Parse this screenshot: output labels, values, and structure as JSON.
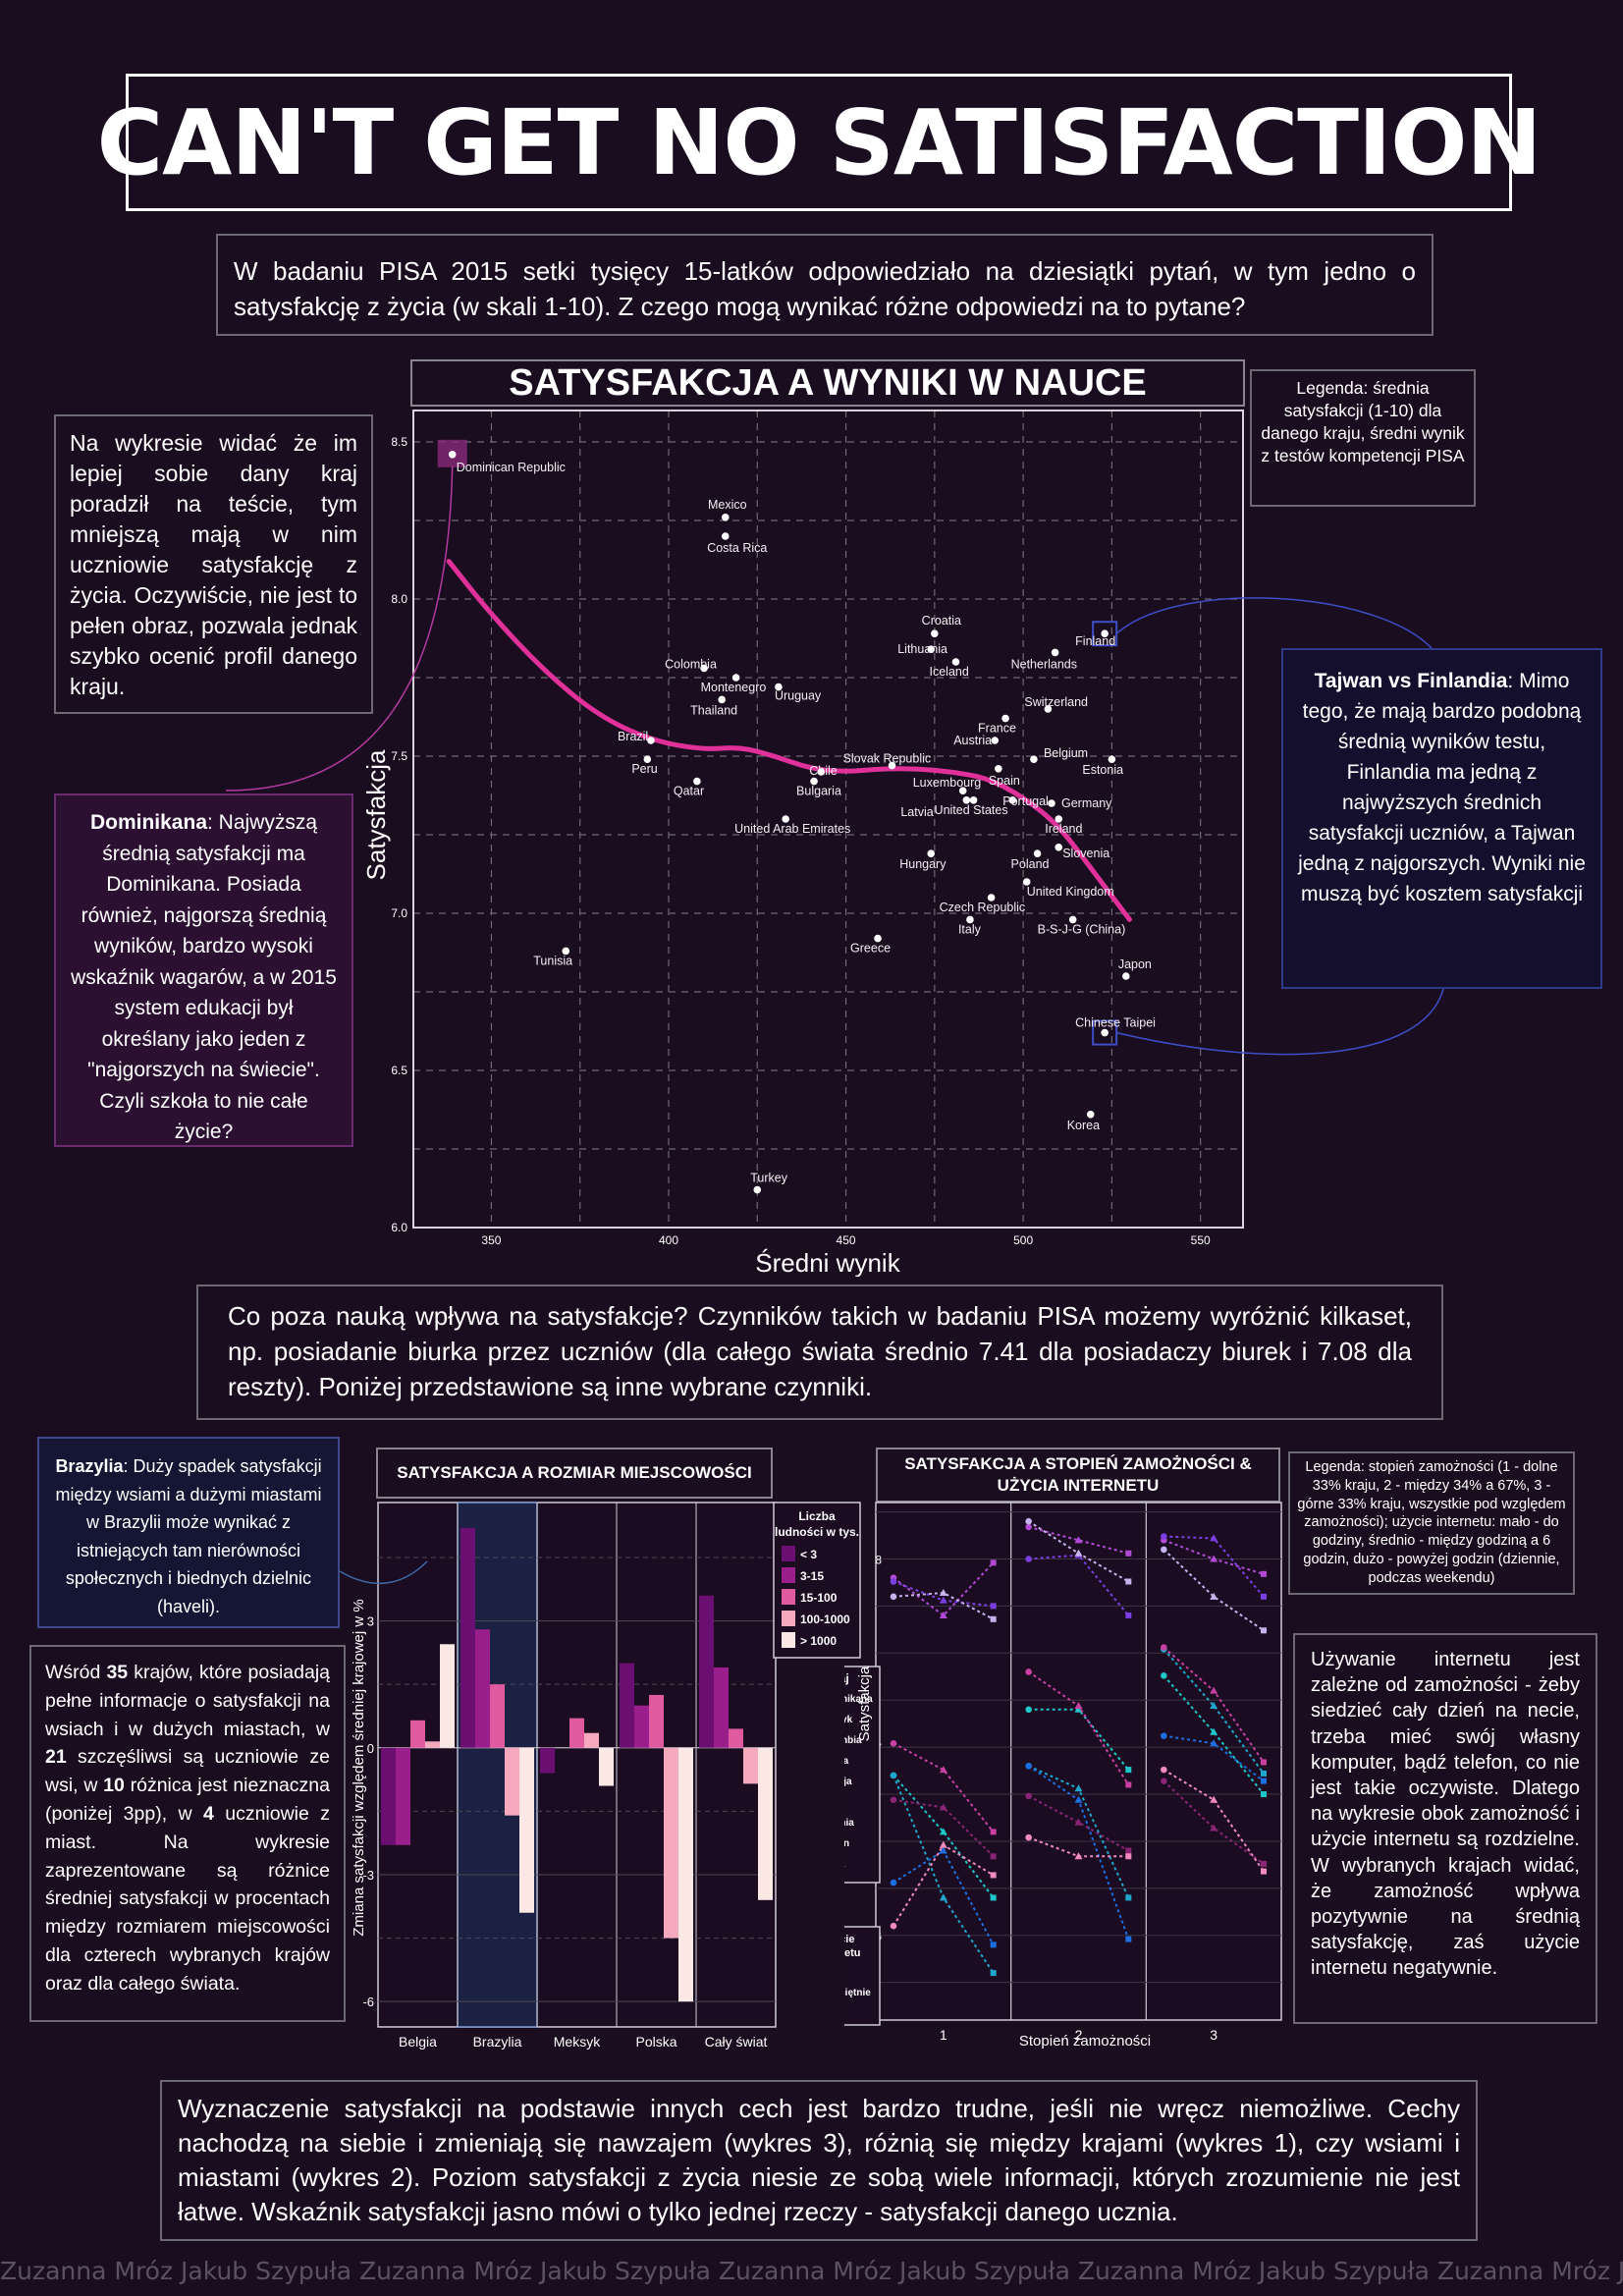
{
  "title": "CAN'T GET NO SATISFACTION",
  "intro": "W badaniu PISA 2015 setki tysięcy 15-latków odpowiedziało na dziesiątki pytań, w tym jedno o satysfakcję z życia (w skali 1-10). Z czego mogą wynikać różne odpowiedzi na to pytane?",
  "left_note": "Na wykresie widać że im lepiej sobie dany kraj poradził na teście, tym mniejszą mają w nim uczniowie satysfakcję z życia. Oczywiście, nie jest to pełen obraz, pozwala jednak szybko ocenić profil danego kraju.",
  "dominikana": {
    "bold": "Dominikana",
    "text": ": Najwyższą średnią satysfakcji ma Dominikana. Posiada również, najgorszą średnią wyników, bardzo wysoki wskaźnik wagarów, a w 2015 system edukacji był określany jako jeden z \"najgorszych na świecie\". Czyli szkoła to nie całe życie?"
  },
  "legend1": "Legenda: średnia satysfakcji (1-10) dla danego kraju, średni wynik z testów kompetencji PISA",
  "taiwan": {
    "bold": "Tajwan vs Finlandia",
    "text": ": Mimo tego, że mają bardzo podobną średnią wyników testu, Finlandia ma jedną z najwyższych średnich satysfakcji uczniów, a Tajwan jedną z najgorszych. Wyniki nie muszą być kosztem satysfakcji"
  },
  "mid_text": "Co poza nauką wpływa na satysfakcje? Czynników takich w badaniu PISA możemy wyróżnić kilkaset, np. posiadanie biurka przez uczniów (dla całego świata średnio 7.41 dla posiadaczy biurek i 7.08 dla reszty). Poniżej przedstawione są inne wybrane czynniki.",
  "brazylia": {
    "bold": "Brazylia",
    "text": ": Duży spadek satysfakcji między wsiami a dużymi miastami w Brazylii może wynikać z istniejących tam nierówności społecznych i biednych dzielnic (haveli)."
  },
  "countries_note": {
    "p1": "Wśród ",
    "b1": "35",
    "p2": " krajów, które posiadają pełne informacje o satysfakcji na wsiach i w dużych miastach, w ",
    "b2": "21",
    "p3": " szczęśliwsi są uczniowie ze wsi, w ",
    "b3": "10",
    "p4": " różnica jest nieznaczna (poniżej 3pp), w ",
    "b4": "4",
    "p5": " uczniowie z miast. Na wykresie zaprezentowane są różnice średniej satysfakcji w procentach między rozmiarem miejscowości dla czterech wybranych krajów oraz dla całego świata."
  },
  "legend3": "Legenda: stopień zamożności (1 - dolne 33% kraju, 2 - między 34% a 67%, 3 - górne 33% kraju, wszystkie pod względem zamożności); użycie internetu: mało - do godziny, średnio - między godziną a 6 godzin, dużo - powyżej godzin (dziennie, podczas weekendu)",
  "internet_note": "Używanie internetu jest zależne od zamożności - żeby siedzieć cały dzień na necie, trzeba mieć swój własny komputer, bądź telefon, co nie jest takie oczywiste. Dlatego na wykresie obok zamożność i użycie internetu są rozdzielne. W wybranych krajach widać, że zamożność wpływa pozytywnie na średnią satysfakcję, zaś użycie internetu negatywnie.",
  "bottom_text": "Wyznaczenie satysfakcji na podstawie innych cech jest bardzo trudne, jeśli nie wręcz niemożliwe. Cechy nachodzą na siebie i zmieniają się nawzajem (wykres 3), różnią się między krajami (wykres 1), czy wsiami i miastami (wykres 2). Poziom satysfakcji z życia niesie ze sobą wiele informacji, których zrozumienie nie jest łatwe. Wskaźnik satysfakcji jasno mówi o tylko jednej rzeczy - satysfakcji danego ucznia.",
  "watermark": "Zuzanna Mróz Jakub Szypuła Zuzanna Mróz Jakub Szypuła Zuzanna Mróz Jakub Szypuła Zuzanna Mróz Jakub Szypuła Zuzanna Mróz Jakub Szypuła",
  "colors": {
    "background": "#1a0d1f",
    "trend": "#e0309a",
    "dominican_highlight": "#8a2a7a",
    "fin_tw_highlight": "#2f3ea8",
    "wealth_lines": [
      "#9b44d8",
      "#ffffff"
    ]
  },
  "chart_data": [
    {
      "type": "scatter",
      "title": "SATYSFAKCJA A WYNIKI W NAUCE",
      "xlabel": "Średni wynik",
      "ylabel": "Satysfakcja",
      "xlim": [
        328,
        562
      ],
      "ylim": [
        6.0,
        8.6
      ],
      "xticks": [
        350,
        400,
        450,
        500,
        550
      ],
      "yticks": [
        6.0,
        6.5,
        7.0,
        7.5,
        8.0,
        8.5
      ],
      "grid": true,
      "points": [
        {
          "label": "Dominican Republic",
          "x": 339,
          "y": 8.46
        },
        {
          "label": "Mexico",
          "x": 416,
          "y": 8.26
        },
        {
          "label": "Costa Rica",
          "x": 416,
          "y": 8.2
        },
        {
          "label": "Croatia",
          "x": 475,
          "y": 7.89
        },
        {
          "label": "Lithuania",
          "x": 474,
          "y": 7.84
        },
        {
          "label": "Finland",
          "x": 523,
          "y": 7.89
        },
        {
          "label": "Netherlands",
          "x": 509,
          "y": 7.83
        },
        {
          "label": "Iceland",
          "x": 481,
          "y": 7.8
        },
        {
          "label": "Colombia",
          "x": 410,
          "y": 7.78
        },
        {
          "label": "Montenegro",
          "x": 419,
          "y": 7.75
        },
        {
          "label": "Uruguay",
          "x": 431,
          "y": 7.72
        },
        {
          "label": "Thailand",
          "x": 415,
          "y": 7.68
        },
        {
          "label": "Switzerland",
          "x": 507,
          "y": 7.65
        },
        {
          "label": "France",
          "x": 495,
          "y": 7.62
        },
        {
          "label": "Austria",
          "x": 492,
          "y": 7.55
        },
        {
          "label": "Belgium",
          "x": 503,
          "y": 7.49
        },
        {
          "label": "Brazil",
          "x": 395,
          "y": 7.55
        },
        {
          "label": "Peru",
          "x": 394,
          "y": 7.49
        },
        {
          "label": "Slovak Republic",
          "x": 463,
          "y": 7.47
        },
        {
          "label": "Estonia",
          "x": 525,
          "y": 7.49
        },
        {
          "label": "Chile",
          "x": 443,
          "y": 7.45
        },
        {
          "label": "Spain",
          "x": 493,
          "y": 7.46
        },
        {
          "label": "Luxembourg",
          "x": 483,
          "y": 7.39
        },
        {
          "label": "Portugal",
          "x": 497,
          "y": 7.36
        },
        {
          "label": "Qatar",
          "x": 408,
          "y": 7.42
        },
        {
          "label": "Bulgaria",
          "x": 441,
          "y": 7.42
        },
        {
          "label": "Germany",
          "x": 508,
          "y": 7.35
        },
        {
          "label": "Latvia",
          "x": 484,
          "y": 7.36
        },
        {
          "label": "United States",
          "x": 486,
          "y": 7.36
        },
        {
          "label": "Ireland",
          "x": 510,
          "y": 7.3
        },
        {
          "label": "United Arab Emirates",
          "x": 433,
          "y": 7.3
        },
        {
          "label": "Slovenia",
          "x": 510,
          "y": 7.21
        },
        {
          "label": "Hungary",
          "x": 474,
          "y": 7.19
        },
        {
          "label": "Poland",
          "x": 504,
          "y": 7.19
        },
        {
          "label": "United Kingdom",
          "x": 501,
          "y": 7.1
        },
        {
          "label": "Czech Republic",
          "x": 491,
          "y": 7.05
        },
        {
          "label": "Italy",
          "x": 485,
          "y": 6.98
        },
        {
          "label": "B-S-J-G (China)",
          "x": 514,
          "y": 6.98
        },
        {
          "label": "Greece",
          "x": 459,
          "y": 6.92
        },
        {
          "label": "Tunisia",
          "x": 371,
          "y": 6.88
        },
        {
          "label": "Japon",
          "x": 529,
          "y": 6.8
        },
        {
          "label": "Chinese Taipei",
          "x": 523,
          "y": 6.62
        },
        {
          "label": "Korea",
          "x": 519,
          "y": 6.36
        },
        {
          "label": "Turkey",
          "x": 425,
          "y": 6.12
        }
      ],
      "trend": [
        [
          338,
          8.12
        ],
        [
          350,
          7.95
        ],
        [
          365,
          7.77
        ],
        [
          380,
          7.63
        ],
        [
          395,
          7.55
        ],
        [
          410,
          7.52
        ],
        [
          420,
          7.53
        ],
        [
          430,
          7.5
        ],
        [
          440,
          7.46
        ],
        [
          450,
          7.45
        ],
        [
          460,
          7.46
        ],
        [
          470,
          7.46
        ],
        [
          480,
          7.45
        ],
        [
          490,
          7.43
        ],
        [
          500,
          7.37
        ],
        [
          510,
          7.28
        ],
        [
          520,
          7.13
        ],
        [
          530,
          6.98
        ]
      ]
    },
    {
      "type": "bar",
      "title": "SATYSFAKCJA A ROZMIAR MIEJSCOWOŚCI",
      "ylabel": "Zmiana satysfakcji względem średniej krajowej w %",
      "ylim": [
        -6.6,
        5.8
      ],
      "yticks": [
        -6,
        -3,
        0,
        3
      ],
      "categories": [
        "Belgia",
        "Brazylia",
        "Meksyk",
        "Polska",
        "Cały świat"
      ],
      "legend_title": "Liczba ludności w tys.",
      "series": [
        {
          "name": "< 3",
          "color": "#6c0f72",
          "values": [
            -2.3,
            5.2,
            -0.6,
            2.0,
            3.6
          ]
        },
        {
          "name": "3-15",
          "color": "#9a1f8c",
          "values": [
            -2.3,
            2.8,
            0.0,
            1.0,
            1.9
          ]
        },
        {
          "name": "15-100",
          "color": "#e05aa0",
          "values": [
            0.65,
            1.5,
            0.7,
            1.25,
            0.45
          ]
        },
        {
          "name": "100-1000",
          "color": "#f5a9bf",
          "values": [
            0.15,
            -1.6,
            0.35,
            -4.5,
            -0.85
          ]
        },
        {
          "name": "> 1000",
          "color": "#fbe7e4",
          "values": [
            2.45,
            -3.9,
            -0.9,
            -6.0,
            -3.6
          ]
        }
      ]
    },
    {
      "type": "line",
      "title": "SATYSFAKCJA A STOPIEŃ ZAMOŻNOŚCI & UŻYCIA INTERNETU",
      "xlabel": "Stopień zamożności",
      "ylabel": "Satysfakcja",
      "x": [
        1,
        2,
        3
      ],
      "ylim": [
        5.55,
        8.3
      ],
      "yticks": [
        6,
        7,
        8
      ],
      "internet_levels": [
        "Mało",
        "Przeciętnie",
        "Dużo"
      ],
      "legend_title": "Kraj",
      "internet_legend_title": "Użycie internetu",
      "series": [
        {
          "name": "Dominikana",
          "color": "#b14bd6",
          "values": [
            [
              7.9,
              7.7,
              7.98
            ],
            [
              8.17,
              8.1,
              8.03
            ],
            [
              8.1,
              8.0,
              7.92
            ]
          ]
        },
        {
          "name": "Meksyk",
          "color": "#7a3fe0",
          "values": [
            [
              7.88,
              7.78,
              7.75
            ],
            [
              8.0,
              8.02,
              7.7
            ],
            [
              8.12,
              8.11,
              7.8
            ]
          ]
        },
        {
          "name": "Kolumbia",
          "color": "#c7b2ee",
          "values": [
            [
              7.8,
              7.82,
              7.68
            ],
            [
              8.2,
              8.03,
              7.88
            ],
            [
              8.05,
              7.8,
              7.62
            ]
          ]
        },
        {
          "name": "Polska",
          "color": "#20c7c9",
          "values": [
            [
              6.85,
              6.55,
              6.2
            ],
            [
              7.2,
              7.2,
              6.88
            ],
            [
              7.38,
              7.08,
              6.75
            ]
          ]
        },
        {
          "name": "Francja",
          "color": "#20a6cc",
          "values": [
            [
              6.85,
              6.2,
              5.8
            ],
            [
              6.9,
              6.78,
              6.2
            ],
            [
              7.52,
              7.22,
              6.86
            ]
          ]
        },
        {
          "name": "UK",
          "color": "#1b6fe0",
          "values": [
            [
              6.28,
              6.45,
              5.95
            ],
            [
              6.9,
              6.72,
              5.98
            ],
            [
              7.06,
              7.02,
              6.82
            ]
          ]
        },
        {
          "name": "Japonia",
          "color": "#c840a2",
          "values": [
            [
              7.02,
              6.88,
              6.55
            ],
            [
              7.4,
              7.22,
              6.8
            ],
            [
              7.53,
              7.3,
              6.92
            ]
          ]
        },
        {
          "name": "Tajwan",
          "color": "#8a2575",
          "values": [
            [
              6.72,
              6.68,
              6.42
            ],
            [
              6.74,
              6.6,
              6.45
            ],
            [
              6.82,
              6.57,
              6.38
            ]
          ]
        },
        {
          "name": "Korea",
          "color": "#f08ac0",
          "values": [
            [
              6.05,
              6.48,
              6.32
            ],
            [
              6.52,
              6.42,
              6.42
            ],
            [
              6.88,
              6.72,
              6.34
            ]
          ]
        }
      ]
    }
  ]
}
